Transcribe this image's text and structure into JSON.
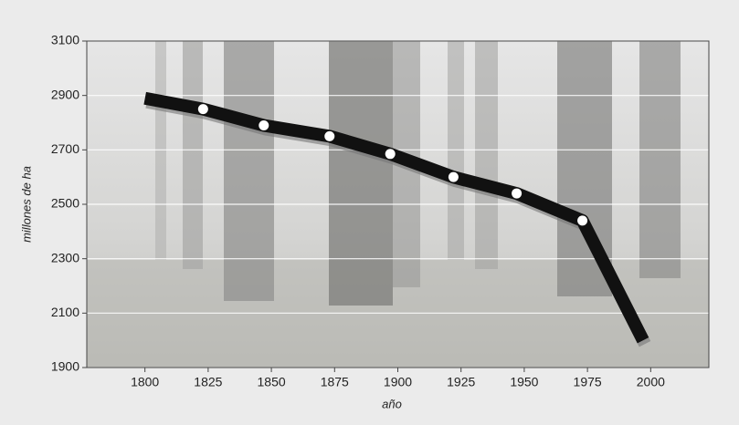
{
  "chart_data": {
    "type": "line",
    "x_label": "año",
    "y_label": "millones de ha",
    "x": [
      1800,
      1823,
      1847,
      1873,
      1897,
      1922,
      1947,
      1973,
      1997
    ],
    "series": [
      {
        "color": "#111111",
        "values": [
          2890,
          2850,
          2790,
          2750,
          2685,
          2600,
          2540,
          2440,
          2000
        ]
      }
    ],
    "xlim": [
      1777,
      2023
    ],
    "ylim": [
      1900,
      3100
    ],
    "xticks": [
      1800,
      1825,
      1850,
      1875,
      1900,
      1925,
      1950,
      1975,
      2000
    ],
    "yticks": [
      1900,
      2100,
      2300,
      2500,
      2700,
      2900,
      3100
    ],
    "grid": true
  }
}
